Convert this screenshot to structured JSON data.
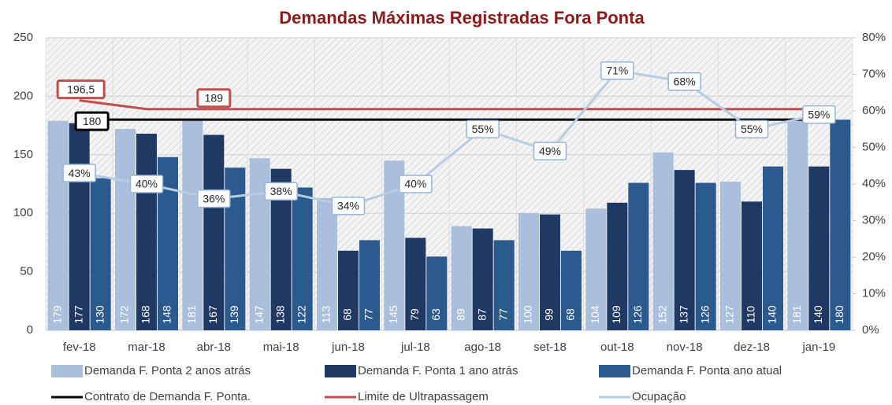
{
  "chart_data": {
    "type": "bar",
    "title": "Demandas Máximas Registradas Fora Ponta",
    "categories": [
      "fev-18",
      "mar-18",
      "abr-18",
      "mai-18",
      "jun-18",
      "jul-18",
      "ago-18",
      "set-18",
      "out-18",
      "nov-18",
      "dez-18",
      "jan-19"
    ],
    "series": [
      {
        "name": "Demanda F. Ponta 2 anos atrás",
        "type": "bar",
        "color": "#a9bfdc",
        "values": [
          179,
          172,
          181,
          147,
          113,
          145,
          89,
          100,
          104,
          152,
          127,
          181
        ]
      },
      {
        "name": "Demanda F. Ponta 1 ano atrás",
        "type": "bar",
        "color": "#1f3864",
        "values": [
          177,
          168,
          167,
          138,
          68,
          79,
          87,
          99,
          109,
          137,
          110,
          140
        ]
      },
      {
        "name": "Demanda F. Ponta ano atual",
        "type": "bar",
        "color": "#2b5a8e",
        "values": [
          130,
          148,
          139,
          122,
          77,
          63,
          77,
          68,
          126,
          126,
          140,
          180
        ]
      },
      {
        "name": "Contrato de Demanda F. Ponta.",
        "type": "line",
        "color": "#000000",
        "values": [
          180,
          180,
          180,
          180,
          180,
          180,
          180,
          180,
          180,
          180,
          180,
          180
        ],
        "value_labels": [
          "180",
          null,
          null,
          null,
          null,
          null,
          null,
          null,
          null,
          null,
          null,
          null
        ]
      },
      {
        "name": "Limite de Ultrapassagem",
        "type": "line",
        "color": "#c0504d",
        "values": [
          196.5,
          189,
          189,
          189,
          189,
          189,
          189,
          189,
          189,
          189,
          189,
          189
        ],
        "value_labels": [
          "196,5",
          null,
          "189",
          null,
          null,
          null,
          null,
          null,
          null,
          null,
          null,
          null
        ]
      },
      {
        "name": "Ocupação",
        "type": "line",
        "axis": "y2",
        "color": "#b8cce4",
        "values": [
          43,
          40,
          36,
          38,
          34,
          40,
          55,
          49,
          71,
          68,
          55,
          59
        ],
        "value_labels": [
          "43%",
          "40%",
          "36%",
          "38%",
          "34%",
          "40%",
          "55%",
          "49%",
          "71%",
          "68%",
          "55%",
          "59%"
        ]
      }
    ],
    "ylim": [
      0,
      250
    ],
    "yticks": [
      0,
      50,
      100,
      150,
      200,
      250
    ],
    "y2lim": [
      0,
      80
    ],
    "y2ticks": [
      {
        "value": 0,
        "label": "0%"
      },
      {
        "value": 10,
        "label": "10%"
      },
      {
        "value": 20,
        "label": "20%"
      },
      {
        "value": 30,
        "label": "30%"
      },
      {
        "value": 40,
        "label": "40%"
      },
      {
        "value": 50,
        "label": "50%"
      },
      {
        "value": 60,
        "label": "60%"
      },
      {
        "value": 70,
        "label": "70%"
      },
      {
        "value": 80,
        "label": "80%"
      }
    ],
    "grid": true,
    "legend": "bottom"
  }
}
